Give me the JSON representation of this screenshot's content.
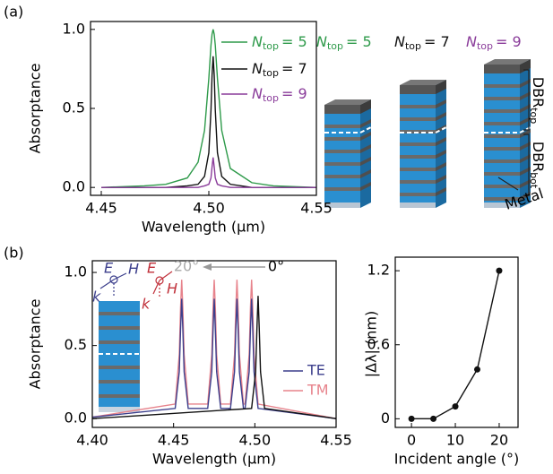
{
  "panel_labels": [
    "(a)",
    "(b)"
  ],
  "chart_data": [
    {
      "type": "line",
      "xlabel": "Wavelength (µm)",
      "ylabel": "Absorptance",
      "xlim": [
        4.445,
        4.55
      ],
      "ylim": [
        -0.05,
        1.05
      ],
      "xticks": [
        4.45,
        {
          "value": 4.5,
          "label": "4.50"
        },
        4.55
      ],
      "yticks": [
        {
          "value": 0,
          "label": "0.0"
        },
        {
          "value": 0.5,
          "label": "0.5"
        },
        {
          "value": 1,
          "label": "1.0"
        }
      ],
      "x": [
        4.45,
        4.47,
        4.48,
        4.49,
        4.495,
        4.498,
        4.5,
        4.501,
        4.5015,
        4.502,
        4.5025,
        4.503,
        4.504,
        4.506,
        4.51,
        4.52,
        4.53,
        4.55
      ],
      "series": [
        {
          "name": [
            "N",
            "top",
            "= 5"
          ],
          "color": "#2e9a4a",
          "values": [
            0,
            0.01,
            0.02,
            0.06,
            0.16,
            0.36,
            0.69,
            0.9,
            0.97,
            1,
            0.97,
            0.9,
            0.69,
            0.36,
            0.12,
            0.03,
            0.01,
            0
          ]
        },
        {
          "name": [
            "N",
            "top",
            "= 7"
          ],
          "color": "#111111",
          "values": [
            0,
            0,
            0,
            0.01,
            0.02,
            0.07,
            0.22,
            0.49,
            0.71,
            0.83,
            0.71,
            0.49,
            0.22,
            0.07,
            0.02,
            0,
            0,
            0
          ]
        },
        {
          "name": [
            "N",
            "top",
            "= 9"
          ],
          "color": "#8a3c9a",
          "values": [
            0,
            0,
            0,
            0,
            0,
            0.01,
            0.02,
            0.06,
            0.13,
            0.19,
            0.13,
            0.06,
            0.02,
            0.01,
            0,
            0,
            0,
            0
          ]
        }
      ]
    },
    {
      "type": "line",
      "xlabel": "Wavelength (µm)",
      "ylabel": "Absorptance",
      "xlim": [
        4.4,
        4.55
      ],
      "ylim": [
        -0.06,
        1.08
      ],
      "xticks": [
        {
          "value": 4.4,
          "label": "4.40"
        },
        4.45,
        {
          "value": 4.5,
          "label": "4.50"
        },
        4.55
      ],
      "yticks": [
        {
          "value": 0,
          "label": "0.0"
        },
        {
          "value": 0.5,
          "label": "0.5"
        },
        {
          "value": 1,
          "label": "1.0"
        }
      ],
      "annotations": [
        "20°",
        "0°"
      ],
      "series": [
        {
          "name": "TM",
          "color": "#e7838c",
          "x": [
            4.4,
            4.451,
            4.4535,
            4.4543,
            4.455,
            4.4557,
            4.4565,
            4.459,
            4.471,
            4.4735,
            4.4743,
            4.475,
            4.4757,
            4.4765,
            4.479,
            4.485,
            4.4875,
            4.4883,
            4.489,
            4.4897,
            4.4905,
            4.493,
            4.494,
            4.4965,
            4.4973,
            4.498,
            4.4987,
            4.4995,
            4.502,
            4.55
          ],
          "values": [
            0.01,
            0.1,
            0.44,
            0.76,
            0.95,
            0.76,
            0.44,
            0.1,
            0.1,
            0.44,
            0.76,
            0.95,
            0.76,
            0.44,
            0.1,
            0.1,
            0.44,
            0.76,
            0.95,
            0.76,
            0.44,
            0.1,
            0.1,
            0.44,
            0.76,
            0.95,
            0.76,
            0.44,
            0.1,
            0
          ]
        },
        {
          "name": "TE",
          "color": "#3c3f8c",
          "x": [
            4.4,
            4.451,
            4.4535,
            4.4543,
            4.455,
            4.4557,
            4.4565,
            4.459,
            4.471,
            4.4735,
            4.4743,
            4.475,
            4.4757,
            4.4765,
            4.479,
            4.485,
            4.4875,
            4.4883,
            4.489,
            4.4897,
            4.4905,
            4.493,
            4.494,
            4.4965,
            4.4973,
            4.498,
            4.4987,
            4.4995,
            4.502,
            4.55
          ],
          "values": [
            0.01,
            0.07,
            0.32,
            0.61,
            0.82,
            0.61,
            0.32,
            0.07,
            0.07,
            0.32,
            0.61,
            0.82,
            0.61,
            0.32,
            0.07,
            0.07,
            0.32,
            0.61,
            0.82,
            0.61,
            0.32,
            0.07,
            0.07,
            0.32,
            0.61,
            0.82,
            0.61,
            0.32,
            0.07,
            0
          ]
        },
        {
          "color": "#111111",
          "x": [
            4.4,
            4.498,
            4.5005,
            4.5013,
            4.502,
            4.5027,
            4.5035,
            4.506,
            4.55
          ],
          "values": [
            0,
            0.07,
            0.32,
            0.62,
            0.84,
            0.62,
            0.32,
            0.07,
            0
          ]
        }
      ]
    },
    {
      "type": "line",
      "markers": true,
      "xlabel": "Incident angle (°)",
      "ylabel": "|Δλ| (nm)",
      "xlim": [
        -3.7,
        24.3
      ],
      "ylim": [
        -0.07,
        1.31
      ],
      "xticks": [
        0,
        10,
        20
      ],
      "yticks": [
        0,
        0.6,
        1.2
      ],
      "x": [
        0,
        5,
        10,
        15,
        20
      ],
      "series": [
        {
          "color": "#111111",
          "values": [
            0,
            0,
            0.1,
            0.4,
            1.2
          ]
        }
      ]
    }
  ],
  "diagram": {
    "labels": [
      {
        "parts": [
          "N",
          "top",
          "= 5"
        ],
        "color": "#2e9a4a"
      },
      {
        "parts": [
          "N",
          "top",
          "= 7"
        ],
        "color": "#111111"
      },
      {
        "parts": [
          "N",
          "top",
          "= 9"
        ],
        "color": "#8a3c9a"
      }
    ],
    "dbr_top": [
      "DBR",
      "top"
    ],
    "dbr_bot": [
      "DBR",
      "bot"
    ],
    "metal": "Metal"
  },
  "inset": {
    "te_labels": [
      "E",
      "H",
      "k"
    ],
    "tm_labels": [
      "E",
      "H",
      "k"
    ]
  }
}
